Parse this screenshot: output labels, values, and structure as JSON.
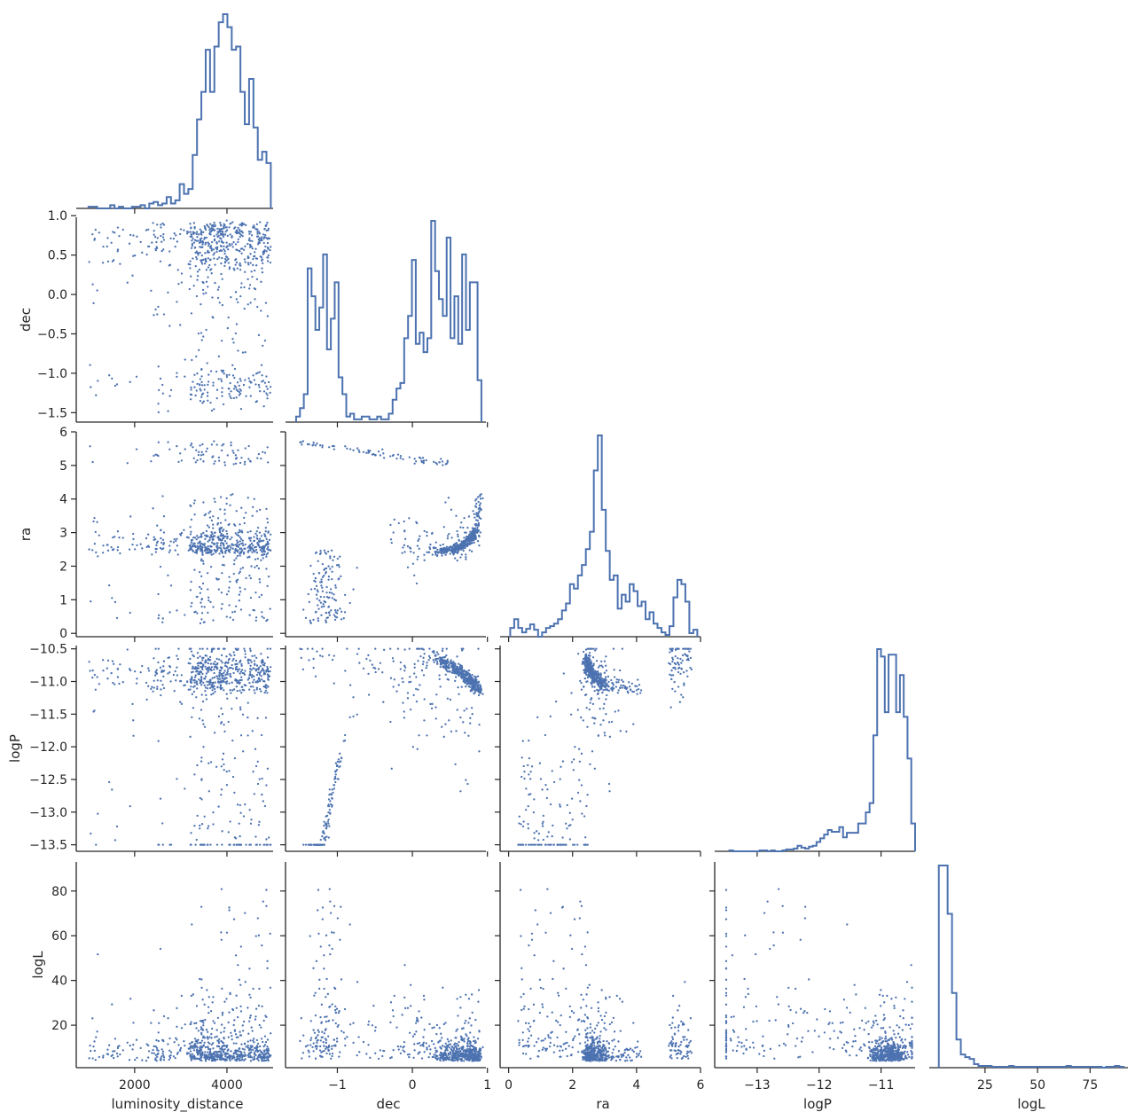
{
  "chart_data": {
    "type": "corner",
    "variables": [
      {
        "key": "luminosity_distance",
        "label": "luminosity_distance",
        "range": [
          850,
          5000
        ],
        "ticks": [
          {
            "v": 2000,
            "label": "2000"
          },
          {
            "v": 4000,
            "label": "4000"
          }
        ]
      },
      {
        "key": "dec",
        "label": "dec",
        "range": [
          -1.62,
          0.98
        ],
        "ticks": [
          {
            "v": -1,
            "label": "−1"
          },
          {
            "v": 0,
            "label": "0"
          },
          {
            "v": 1,
            "label": "1"
          }
        ]
      },
      {
        "key": "ra",
        "label": "ra",
        "range": [
          -0.1,
          6.0
        ],
        "ticks": [
          {
            "v": 0,
            "label": "0"
          },
          {
            "v": 2,
            "label": "2"
          },
          {
            "v": 4,
            "label": "4"
          },
          {
            "v": 6,
            "label": "6"
          }
        ]
      },
      {
        "key": "logP",
        "label": "logP",
        "range": [
          -13.6,
          -10.45
        ],
        "ticks": [
          {
            "v": -13,
            "label": "−13"
          },
          {
            "v": -12,
            "label": "−12"
          },
          {
            "v": -11,
            "label": "−11"
          }
        ]
      },
      {
        "key": "logL",
        "label": "logL",
        "range": [
          1,
          93
        ],
        "ticks": [
          {
            "v": 25,
            "label": "25"
          },
          {
            "v": 50,
            "label": "50"
          },
          {
            "v": 75,
            "label": "75"
          }
        ]
      }
    ],
    "row_ticks": {
      "dec": [
        {
          "v": 1.0,
          "label": "1.0"
        },
        {
          "v": 0.5,
          "label": "0.5"
        },
        {
          "v": 0.0,
          "label": "0.0"
        },
        {
          "v": -0.5,
          "label": "−0.5"
        },
        {
          "v": -1.0,
          "label": "−1.0"
        },
        {
          "v": -1.5,
          "label": "−1.5"
        }
      ],
      "ra": [
        {
          "v": 6,
          "label": "6"
        },
        {
          "v": 5,
          "label": "5"
        },
        {
          "v": 4,
          "label": "4"
        },
        {
          "v": 3,
          "label": "3"
        },
        {
          "v": 2,
          "label": "2"
        },
        {
          "v": 1,
          "label": "1"
        },
        {
          "v": 0,
          "label": "0"
        }
      ],
      "logP": [
        {
          "v": -10.5,
          "label": "−10.5"
        },
        {
          "v": -11.0,
          "label": "−11.0"
        },
        {
          "v": -11.5,
          "label": "−11.5"
        },
        {
          "v": -12.0,
          "label": "−12.0"
        },
        {
          "v": -12.5,
          "label": "−12.5"
        },
        {
          "v": -13.0,
          "label": "−13.0"
        },
        {
          "v": -13.5,
          "label": "−13.5"
        }
      ],
      "logL": [
        {
          "v": 80,
          "label": "80"
        },
        {
          "v": 60,
          "label": "60"
        },
        {
          "v": 40,
          "label": "40"
        },
        {
          "v": 20,
          "label": "20"
        }
      ]
    },
    "histograms": {
      "luminosity_distance": {
        "start": 1000,
        "end": 4950,
        "counts": [
          1,
          1,
          0,
          0,
          0,
          2,
          0,
          1,
          0,
          0,
          1,
          1,
          2,
          0,
          3,
          4,
          2,
          3,
          7,
          3,
          5,
          15,
          9,
          12,
          33,
          55,
          72,
          98,
          72,
          100,
          115,
          120,
          112,
          98,
          100,
          72,
          52,
          80,
          50,
          30,
          35,
          28
        ]
      },
      "dec": {
        "start": -1.55,
        "end": 0.92,
        "counts": [
          2,
          5,
          10,
          55,
          45,
          33,
          41,
          60,
          26,
          37,
          50,
          16,
          10,
          2,
          3,
          1,
          1,
          2,
          2,
          1,
          1,
          2,
          1,
          1,
          3,
          8,
          12,
          14,
          30,
          38,
          58,
          28,
          32,
          25,
          30,
          72,
          54,
          44,
          38,
          66,
          30,
          45,
          28,
          60,
          33,
          50,
          50,
          15
        ]
      },
      "ra": {
        "start": 0.05,
        "end": 5.9,
        "counts": [
          10,
          20,
          10,
          5,
          9,
          14,
          8,
          0,
          5,
          10,
          12,
          15,
          20,
          30,
          38,
          60,
          55,
          70,
          82,
          100,
          120,
          190,
          230,
          145,
          98,
          65,
          70,
          32,
          48,
          40,
          60,
          52,
          35,
          40,
          20,
          28,
          15,
          10,
          5,
          2,
          12,
          45,
          65,
          60,
          40,
          4,
          8
        ]
      },
      "logP": {
        "start": -13.45,
        "end": -10.45,
        "counts": [
          1,
          0,
          0,
          0,
          0,
          0,
          0,
          0,
          1,
          1,
          0,
          1,
          0,
          0,
          1,
          2,
          2,
          3,
          6,
          4,
          3,
          5,
          6,
          10,
          14,
          18,
          23,
          21,
          21,
          26,
          15,
          20,
          20,
          20,
          30,
          30,
          42,
          52,
          125,
          218,
          210,
          150,
          212,
          212,
          150,
          190,
          145,
          100,
          30
        ]
      },
      "logL": {
        "start": 3,
        "end": 91,
        "counts": [
          230,
          230,
          175,
          85,
          32,
          15,
          12,
          10,
          4,
          2,
          2,
          2,
          1,
          1,
          1,
          1,
          2,
          1,
          1,
          1,
          1,
          1,
          1,
          1,
          1,
          1,
          1,
          1,
          1,
          2,
          1,
          1,
          1,
          1,
          1,
          1,
          1,
          0,
          1,
          1,
          2,
          1
        ]
      }
    },
    "scatter_samples": 700
  }
}
